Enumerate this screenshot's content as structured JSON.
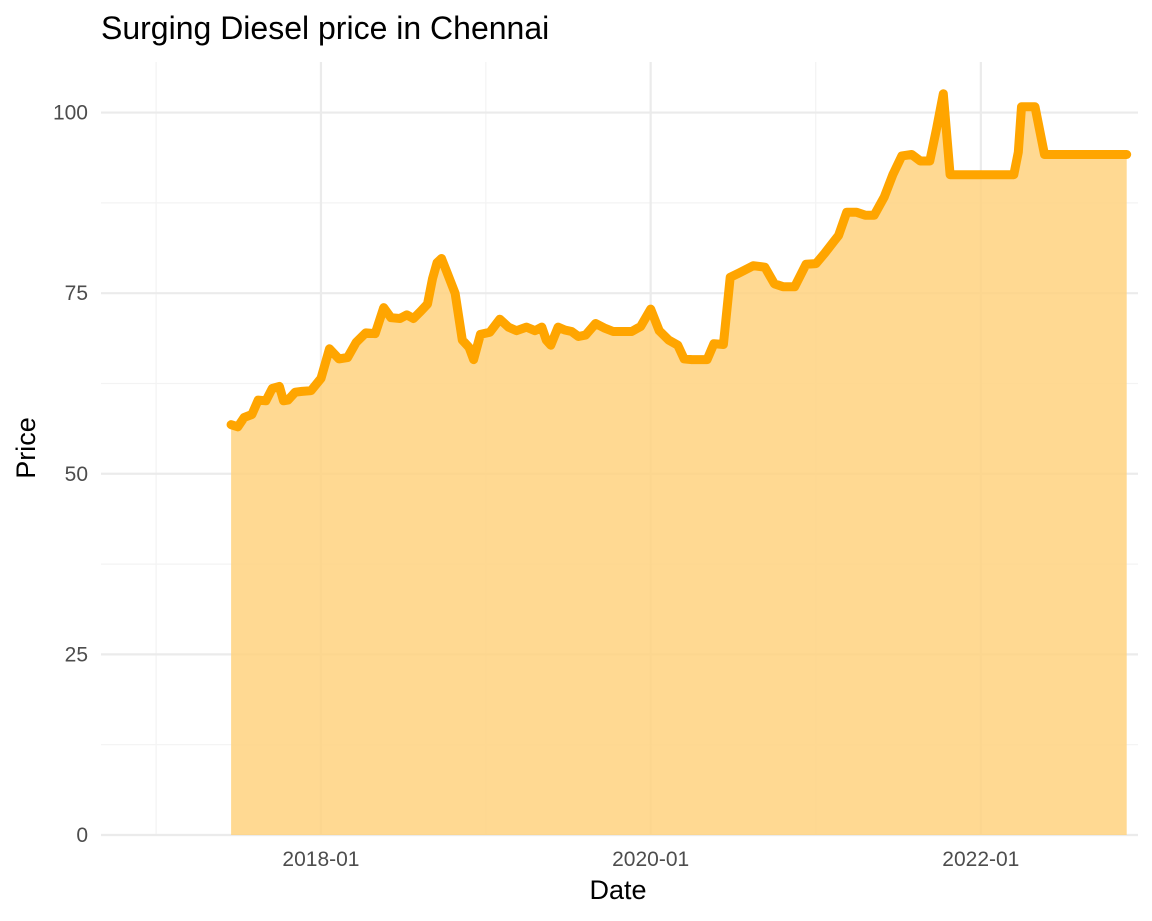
{
  "chart_data": {
    "type": "area",
    "title": "Surging Diesel price in Chennai",
    "xlabel": "Date",
    "ylabel": "Price",
    "x_ticks": [
      "2018-01",
      "2020-01",
      "2022-01"
    ],
    "y_ticks": [
      0,
      25,
      50,
      75,
      100
    ],
    "xlim": [
      "2016-09-01",
      "2022-12-15"
    ],
    "ylim": [
      0,
      107
    ],
    "grid": true,
    "legend": "none",
    "line_color": "#FFA500",
    "fill_color": "#FFD27F",
    "series": [
      {
        "x": [
          "2017-06-16",
          "2017-07-01",
          "2017-07-15",
          "2017-08-01",
          "2017-08-15",
          "2017-09-01",
          "2017-09-15",
          "2017-10-01",
          "2017-10-10",
          "2017-10-20",
          "2017-11-05",
          "2017-11-20",
          "2017-12-10",
          "2018-01-01",
          "2018-01-20",
          "2018-02-10",
          "2018-03-01",
          "2018-03-20",
          "2018-04-10",
          "2018-05-01",
          "2018-05-20",
          "2018-06-05",
          "2018-06-25",
          "2018-07-10",
          "2018-07-25",
          "2018-08-10",
          "2018-08-25",
          "2018-09-05",
          "2018-09-15",
          "2018-09-25",
          "2018-10-05",
          "2018-10-25",
          "2018-11-10",
          "2018-11-25",
          "2018-12-05",
          "2018-12-20",
          "2019-01-10",
          "2019-02-01",
          "2019-02-20",
          "2019-03-10",
          "2019-04-01",
          "2019-04-20",
          "2019-05-05",
          "2019-05-15",
          "2019-05-25",
          "2019-06-10",
          "2019-06-25",
          "2019-07-10",
          "2019-07-25",
          "2019-08-10",
          "2019-09-01",
          "2019-09-20",
          "2019-10-10",
          "2019-11-01",
          "2019-11-20",
          "2019-12-10",
          "2020-01-01",
          "2020-01-20",
          "2020-02-10",
          "2020-03-01",
          "2020-03-15",
          "2020-04-01",
          "2020-04-20",
          "2020-05-05",
          "2020-05-20",
          "2020-06-10",
          "2020-06-25",
          "2020-07-15",
          "2020-08-15",
          "2020-09-10",
          "2020-10-01",
          "2020-10-20",
          "2020-11-15",
          "2020-12-10",
          "2021-01-01",
          "2021-01-20",
          "2021-02-10",
          "2021-02-20",
          "2021-03-10",
          "2021-04-01",
          "2021-04-20",
          "2021-05-10",
          "2021-06-01",
          "2021-06-20",
          "2021-07-10",
          "2021-08-01",
          "2021-08-20",
          "2021-09-10",
          "2021-09-25",
          "2021-10-10",
          "2021-10-25",
          "2021-11-03",
          "2021-11-05",
          "2022-01-15",
          "2022-03-15",
          "2022-03-25",
          "2022-04-01",
          "2022-04-15",
          "2022-04-28",
          "2022-05-01",
          "2022-05-22",
          "2022-11-20"
        ],
        "values": [
          56.8,
          56.5,
          57.8,
          58.2,
          60.2,
          60.1,
          61.8,
          62.1,
          60.1,
          60.2,
          61.3,
          61.4,
          61.5,
          63.2,
          67.3,
          65.9,
          66.1,
          68.2,
          69.5,
          69.4,
          73.0,
          71.6,
          71.5,
          72.0,
          71.5,
          72.5,
          73.5,
          77.0,
          79.2,
          79.8,
          78.2,
          75.0,
          68.5,
          67.5,
          65.8,
          69.3,
          69.6,
          71.4,
          70.3,
          69.8,
          70.3,
          69.8,
          70.3,
          68.5,
          67.8,
          70.3,
          69.9,
          69.7,
          69.0,
          69.2,
          70.8,
          70.2,
          69.7,
          69.7,
          69.7,
          70.4,
          72.8,
          69.8,
          68.5,
          67.8,
          65.9,
          65.8,
          65.8,
          65.8,
          68.0,
          67.9,
          77.2,
          77.8,
          78.8,
          78.6,
          76.3,
          75.9,
          75.9,
          79.0,
          79.1,
          80.5,
          82.2,
          83.0,
          86.2,
          86.2,
          85.8,
          85.8,
          88.3,
          91.4,
          94.0,
          94.2,
          93.3,
          93.3,
          97.8,
          102.6,
          91.4,
          91.4,
          91.4,
          91.4,
          91.4,
          94.5,
          100.8,
          100.8,
          100.8,
          100.8,
          94.2,
          94.2
        ]
      }
    ]
  }
}
